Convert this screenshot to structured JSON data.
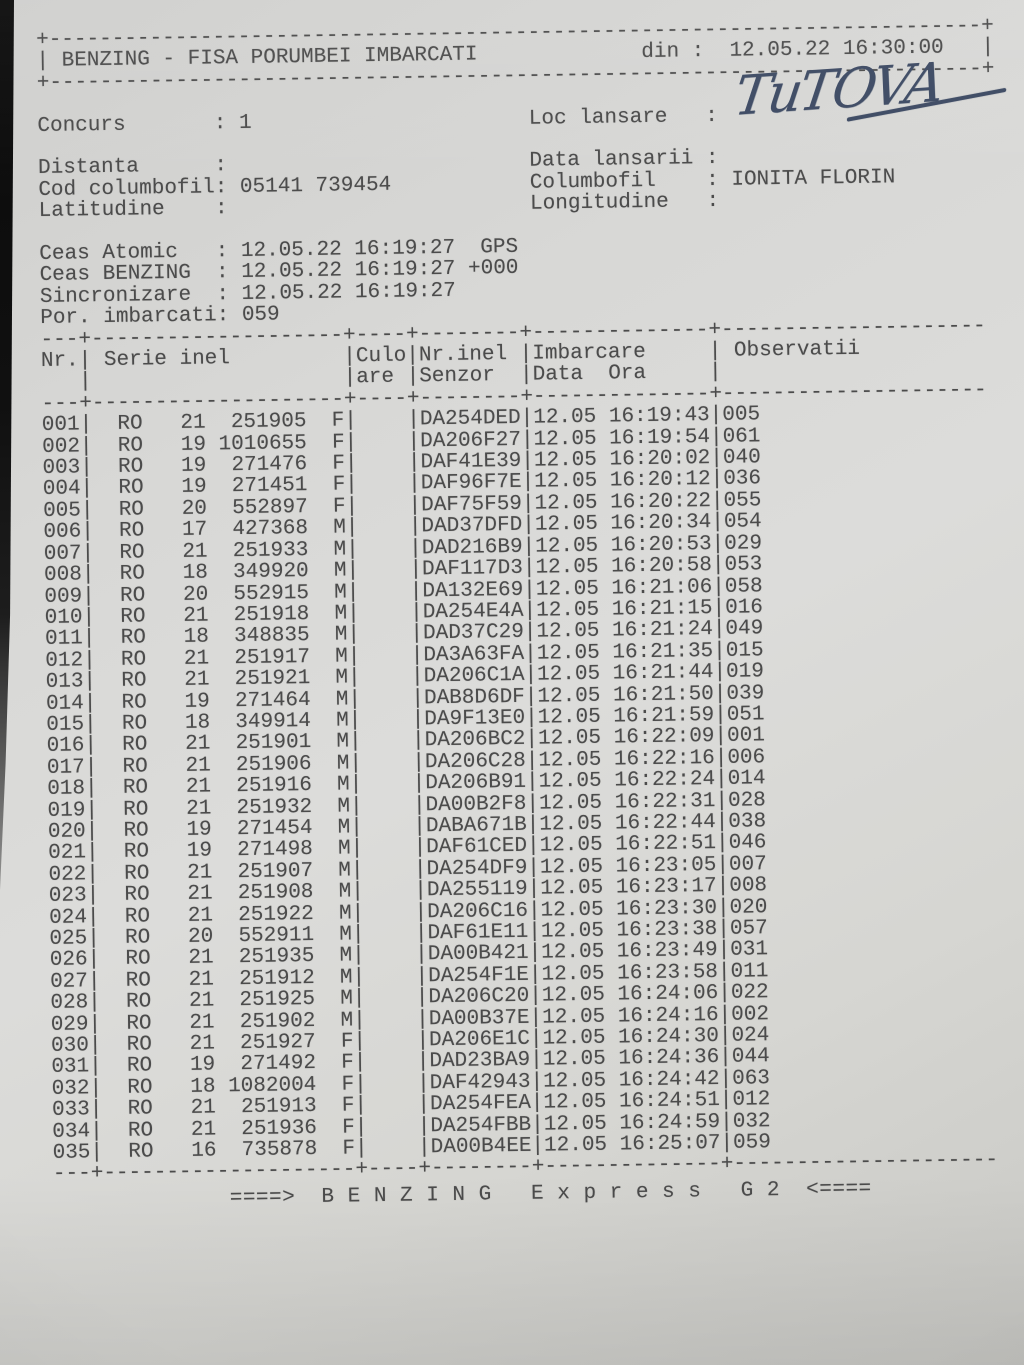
{
  "scan": {
    "paper_color": "#d8d8d6",
    "ink_color": "#4b4b4b",
    "pen_ink_color": "#3d4a63"
  },
  "header_box": {
    "title": "BENZING - FISA PORUMBEI IMBARCATI",
    "din_label": "din :",
    "din_value": "12.05.22 16:30:00"
  },
  "info": {
    "concurs_label": "Concurs",
    "concurs_value": "1",
    "loc_lansare_label": "Loc lansare",
    "loc_lansare_value": "",
    "loc_lansare_handwritten": "TuTOVA",
    "distanta_label": "Distanta",
    "distanta_value": "",
    "data_lansarii_label": "Data lansarii",
    "data_lansarii_value": "",
    "cod_columbofil_label": "Cod columbofil",
    "cod_columbofil_value": "05141 739454",
    "columbofil_label": "Columbofil",
    "columbofil_value": "IONITA FLORIN",
    "latitudine_label": "Latitudine",
    "latitudine_value": "",
    "longitudine_label": "Longitudine",
    "longitudine_value": "",
    "ceas_atomic_label": "Ceas Atomic",
    "ceas_atomic_value": "12.05.22 16:19:27  GPS",
    "ceas_benzing_label": "Ceas BENZING",
    "ceas_benzing_value": "12.05.22 16:19:27 +000",
    "sincronizare_label": "Sincronizare",
    "sincronizare_value": "12.05.22 16:19:27",
    "por_imbarcati_label": "Por. imbarcati",
    "por_imbarcati_value": "059"
  },
  "table": {
    "headers": {
      "nr": "Nr.",
      "serie": "Serie inel",
      "culoare_1": "Culo",
      "culoare_2": "are",
      "senzor_1": "Nr.inel",
      "senzor_2": "Senzor",
      "imbarcare_1": "Imbarcare",
      "imbarcare_2": "Data  Ora",
      "observatii": "Observatii"
    },
    "rows": [
      {
        "nr": "001",
        "country": "RO",
        "year": "21",
        "ring": "251905",
        "sex": "F",
        "culoare": "",
        "senzor": "DA254DED",
        "data": "12.05",
        "ora": "16:19:43",
        "obs": "005"
      },
      {
        "nr": "002",
        "country": "RO",
        "year": "19",
        "ring": "1010655",
        "sex": "F",
        "culoare": "",
        "senzor": "DA206F27",
        "data": "12.05",
        "ora": "16:19:54",
        "obs": "061"
      },
      {
        "nr": "003",
        "country": "RO",
        "year": "19",
        "ring": "271476",
        "sex": "F",
        "culoare": "",
        "senzor": "DAF41E39",
        "data": "12.05",
        "ora": "16:20:02",
        "obs": "040"
      },
      {
        "nr": "004",
        "country": "RO",
        "year": "19",
        "ring": "271451",
        "sex": "F",
        "culoare": "",
        "senzor": "DAF96F7E",
        "data": "12.05",
        "ora": "16:20:12",
        "obs": "036"
      },
      {
        "nr": "005",
        "country": "RO",
        "year": "20",
        "ring": "552897",
        "sex": "F",
        "culoare": "",
        "senzor": "DAF75F59",
        "data": "12.05",
        "ora": "16:20:22",
        "obs": "055"
      },
      {
        "nr": "006",
        "country": "RO",
        "year": "17",
        "ring": "427368",
        "sex": "M",
        "culoare": "",
        "senzor": "DAD37DFD",
        "data": "12.05",
        "ora": "16:20:34",
        "obs": "054"
      },
      {
        "nr": "007",
        "country": "RO",
        "year": "21",
        "ring": "251933",
        "sex": "M",
        "culoare": "",
        "senzor": "DAD216B9",
        "data": "12.05",
        "ora": "16:20:53",
        "obs": "029"
      },
      {
        "nr": "008",
        "country": "RO",
        "year": "18",
        "ring": "349920",
        "sex": "M",
        "culoare": "",
        "senzor": "DAF117D3",
        "data": "12.05",
        "ora": "16:20:58",
        "obs": "053"
      },
      {
        "nr": "009",
        "country": "RO",
        "year": "20",
        "ring": "552915",
        "sex": "M",
        "culoare": "",
        "senzor": "DA132E69",
        "data": "12.05",
        "ora": "16:21:06",
        "obs": "058"
      },
      {
        "nr": "010",
        "country": "RO",
        "year": "21",
        "ring": "251918",
        "sex": "M",
        "culoare": "",
        "senzor": "DA254E4A",
        "data": "12.05",
        "ora": "16:21:15",
        "obs": "016"
      },
      {
        "nr": "011",
        "country": "RO",
        "year": "18",
        "ring": "348835",
        "sex": "M",
        "culoare": "",
        "senzor": "DAD37C29",
        "data": "12.05",
        "ora": "16:21:24",
        "obs": "049"
      },
      {
        "nr": "012",
        "country": "RO",
        "year": "21",
        "ring": "251917",
        "sex": "M",
        "culoare": "",
        "senzor": "DA3A63FA",
        "data": "12.05",
        "ora": "16:21:35",
        "obs": "015"
      },
      {
        "nr": "013",
        "country": "RO",
        "year": "21",
        "ring": "251921",
        "sex": "M",
        "culoare": "",
        "senzor": "DA206C1A",
        "data": "12.05",
        "ora": "16:21:44",
        "obs": "019"
      },
      {
        "nr": "014",
        "country": "RO",
        "year": "19",
        "ring": "271464",
        "sex": "M",
        "culoare": "",
        "senzor": "DAB8D6DF",
        "data": "12.05",
        "ora": "16:21:50",
        "obs": "039"
      },
      {
        "nr": "015",
        "country": "RO",
        "year": "18",
        "ring": "349914",
        "sex": "M",
        "culoare": "",
        "senzor": "DA9F13E0",
        "data": "12.05",
        "ora": "16:21:59",
        "obs": "051"
      },
      {
        "nr": "016",
        "country": "RO",
        "year": "21",
        "ring": "251901",
        "sex": "M",
        "culoare": "",
        "senzor": "DA206BC2",
        "data": "12.05",
        "ora": "16:22:09",
        "obs": "001"
      },
      {
        "nr": "017",
        "country": "RO",
        "year": "21",
        "ring": "251906",
        "sex": "M",
        "culoare": "",
        "senzor": "DA206C28",
        "data": "12.05",
        "ora": "16:22:16",
        "obs": "006"
      },
      {
        "nr": "018",
        "country": "RO",
        "year": "21",
        "ring": "251916",
        "sex": "M",
        "culoare": "",
        "senzor": "DA206B91",
        "data": "12.05",
        "ora": "16:22:24",
        "obs": "014"
      },
      {
        "nr": "019",
        "country": "RO",
        "year": "21",
        "ring": "251932",
        "sex": "M",
        "culoare": "",
        "senzor": "DA00B2F8",
        "data": "12.05",
        "ora": "16:22:31",
        "obs": "028"
      },
      {
        "nr": "020",
        "country": "RO",
        "year": "19",
        "ring": "271454",
        "sex": "M",
        "culoare": "",
        "senzor": "DABA671B",
        "data": "12.05",
        "ora": "16:22:44",
        "obs": "038"
      },
      {
        "nr": "021",
        "country": "RO",
        "year": "19",
        "ring": "271498",
        "sex": "M",
        "culoare": "",
        "senzor": "DAF61CED",
        "data": "12.05",
        "ora": "16:22:51",
        "obs": "046"
      },
      {
        "nr": "022",
        "country": "RO",
        "year": "21",
        "ring": "251907",
        "sex": "M",
        "culoare": "",
        "senzor": "DA254DF9",
        "data": "12.05",
        "ora": "16:23:05",
        "obs": "007"
      },
      {
        "nr": "023",
        "country": "RO",
        "year": "21",
        "ring": "251908",
        "sex": "M",
        "culoare": "",
        "senzor": "DA255119",
        "data": "12.05",
        "ora": "16:23:17",
        "obs": "008"
      },
      {
        "nr": "024",
        "country": "RO",
        "year": "21",
        "ring": "251922",
        "sex": "M",
        "culoare": "",
        "senzor": "DA206C16",
        "data": "12.05",
        "ora": "16:23:30",
        "obs": "020"
      },
      {
        "nr": "025",
        "country": "RO",
        "year": "20",
        "ring": "552911",
        "sex": "M",
        "culoare": "",
        "senzor": "DAF61E11",
        "data": "12.05",
        "ora": "16:23:38",
        "obs": "057"
      },
      {
        "nr": "026",
        "country": "RO",
        "year": "21",
        "ring": "251935",
        "sex": "M",
        "culoare": "",
        "senzor": "DA00B421",
        "data": "12.05",
        "ora": "16:23:49",
        "obs": "031"
      },
      {
        "nr": "027",
        "country": "RO",
        "year": "21",
        "ring": "251912",
        "sex": "M",
        "culoare": "",
        "senzor": "DA254F1E",
        "data": "12.05",
        "ora": "16:23:58",
        "obs": "011"
      },
      {
        "nr": "028",
        "country": "RO",
        "year": "21",
        "ring": "251925",
        "sex": "M",
        "culoare": "",
        "senzor": "DA206C20",
        "data": "12.05",
        "ora": "16:24:06",
        "obs": "022"
      },
      {
        "nr": "029",
        "country": "RO",
        "year": "21",
        "ring": "251902",
        "sex": "M",
        "culoare": "",
        "senzor": "DA00B37E",
        "data": "12.05",
        "ora": "16:24:16",
        "obs": "002"
      },
      {
        "nr": "030",
        "country": "RO",
        "year": "21",
        "ring": "251927",
        "sex": "F",
        "culoare": "",
        "senzor": "DA206E1C",
        "data": "12.05",
        "ora": "16:24:30",
        "obs": "024"
      },
      {
        "nr": "031",
        "country": "RO",
        "year": "19",
        "ring": "271492",
        "sex": "F",
        "culoare": "",
        "senzor": "DAD23BA9",
        "data": "12.05",
        "ora": "16:24:36",
        "obs": "044"
      },
      {
        "nr": "032",
        "country": "RO",
        "year": "18",
        "ring": "1082004",
        "sex": "F",
        "culoare": "",
        "senzor": "DAF42943",
        "data": "12.05",
        "ora": "16:24:42",
        "obs": "063"
      },
      {
        "nr": "033",
        "country": "RO",
        "year": "21",
        "ring": "251913",
        "sex": "F",
        "culoare": "",
        "senzor": "DA254FEA",
        "data": "12.05",
        "ora": "16:24:51",
        "obs": "012"
      },
      {
        "nr": "034",
        "country": "RO",
        "year": "21",
        "ring": "251936",
        "sex": "F",
        "culoare": "",
        "senzor": "DA254FBB",
        "data": "12.05",
        "ora": "16:24:59",
        "obs": "032"
      },
      {
        "nr": "035",
        "country": "RO",
        "year": "16",
        "ring": "735878",
        "sex": "F",
        "culoare": "",
        "senzor": "DA00B4EE",
        "data": "12.05",
        "ora": "16:25:07",
        "obs": "059"
      }
    ]
  },
  "footer": {
    "text": "====>  B E N Z I N G   E x p r e s s   G 2  <===="
  }
}
